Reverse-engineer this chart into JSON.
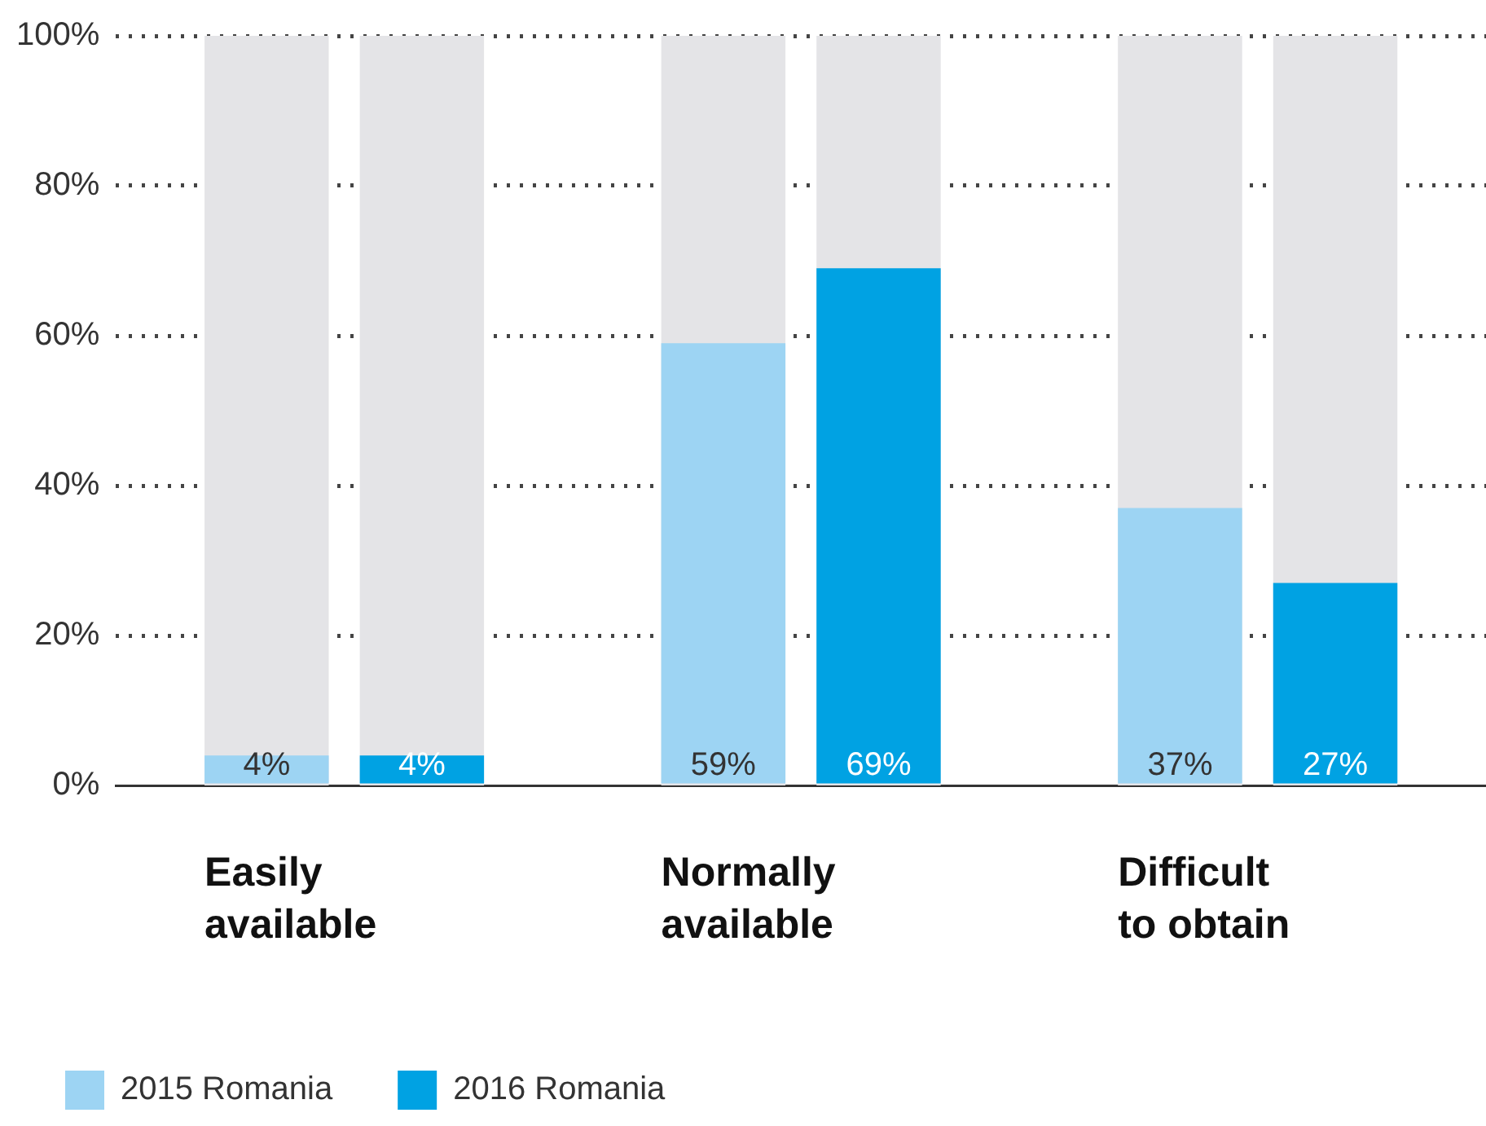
{
  "chart_data": {
    "type": "bar",
    "categories": [
      "Easily available",
      "Normally available",
      "Difficult to obtain"
    ],
    "series": [
      {
        "name": "2015 Romania",
        "color": "#9dd4f3",
        "values": [
          4,
          59,
          37
        ],
        "value_labels": [
          "4%",
          "59%",
          "37%"
        ]
      },
      {
        "name": "2016 Romania",
        "color": "#00a2e3",
        "values": [
          4,
          69,
          27
        ],
        "value_labels": [
          "4%",
          "69%",
          "27%"
        ]
      }
    ],
    "ylim": [
      0,
      100
    ],
    "yticks": [
      {
        "value": 0,
        "label": "0%"
      },
      {
        "value": 20,
        "label": "20%"
      },
      {
        "value": 40,
        "label": "40%"
      },
      {
        "value": 60,
        "label": "60%"
      },
      {
        "value": 80,
        "label": "80%"
      },
      {
        "value": 100,
        "label": "100%"
      }
    ],
    "grid": "y",
    "legend": "bottom left"
  }
}
